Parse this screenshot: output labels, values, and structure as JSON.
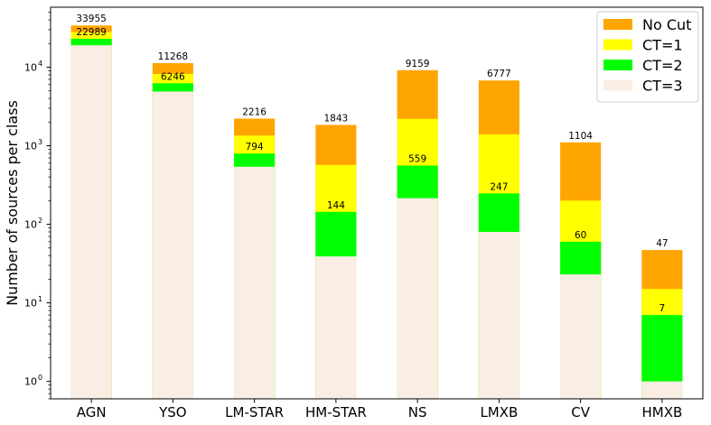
{
  "chart_data": {
    "type": "bar",
    "stacked": "overlay",
    "yscale": "log",
    "ylabel": "Number of sources per class",
    "xlabel": "",
    "ylim": [
      0.6,
      58000
    ],
    "grid": false,
    "legend_position": "top-right",
    "categories": [
      "AGN",
      "YSO",
      "LM-STAR",
      "HM-STAR",
      "NS",
      "LMXB",
      "CV",
      "HMXB"
    ],
    "y_ticks": [
      {
        "value": 1,
        "label": "10",
        "exp": "0"
      },
      {
        "value": 10,
        "label": "10",
        "exp": "1"
      },
      {
        "value": 100,
        "label": "10",
        "exp": "2"
      },
      {
        "value": 1000,
        "label": "10",
        "exp": "3"
      },
      {
        "value": 10000,
        "label": "10",
        "exp": "4"
      }
    ],
    "series": [
      {
        "name": "No Cut",
        "color": "#ffa500",
        "values": [
          33955,
          11268,
          2216,
          1843,
          9159,
          6777,
          1104,
          47
        ]
      },
      {
        "name": "CT=1",
        "color": "#ffff00",
        "values": [
          28000,
          8200,
          1350,
          570,
          2200,
          1400,
          200,
          15
        ]
      },
      {
        "name": "CT=2",
        "color": "#00ff00",
        "values": [
          22989,
          6246,
          794,
          144,
          559,
          247,
          60,
          7
        ]
      },
      {
        "name": "CT=3",
        "color": "#faede3",
        "values": [
          19000,
          4900,
          540,
          39,
          215,
          80,
          23,
          1
        ]
      }
    ],
    "top_labels": [
      "33955",
      "11268",
      "2216",
      "1843",
      "9159",
      "6777",
      "1104",
      "47"
    ],
    "ct2_labels": [
      "22989",
      "6246",
      "794",
      "144",
      "559",
      "247",
      "60",
      "7"
    ]
  }
}
